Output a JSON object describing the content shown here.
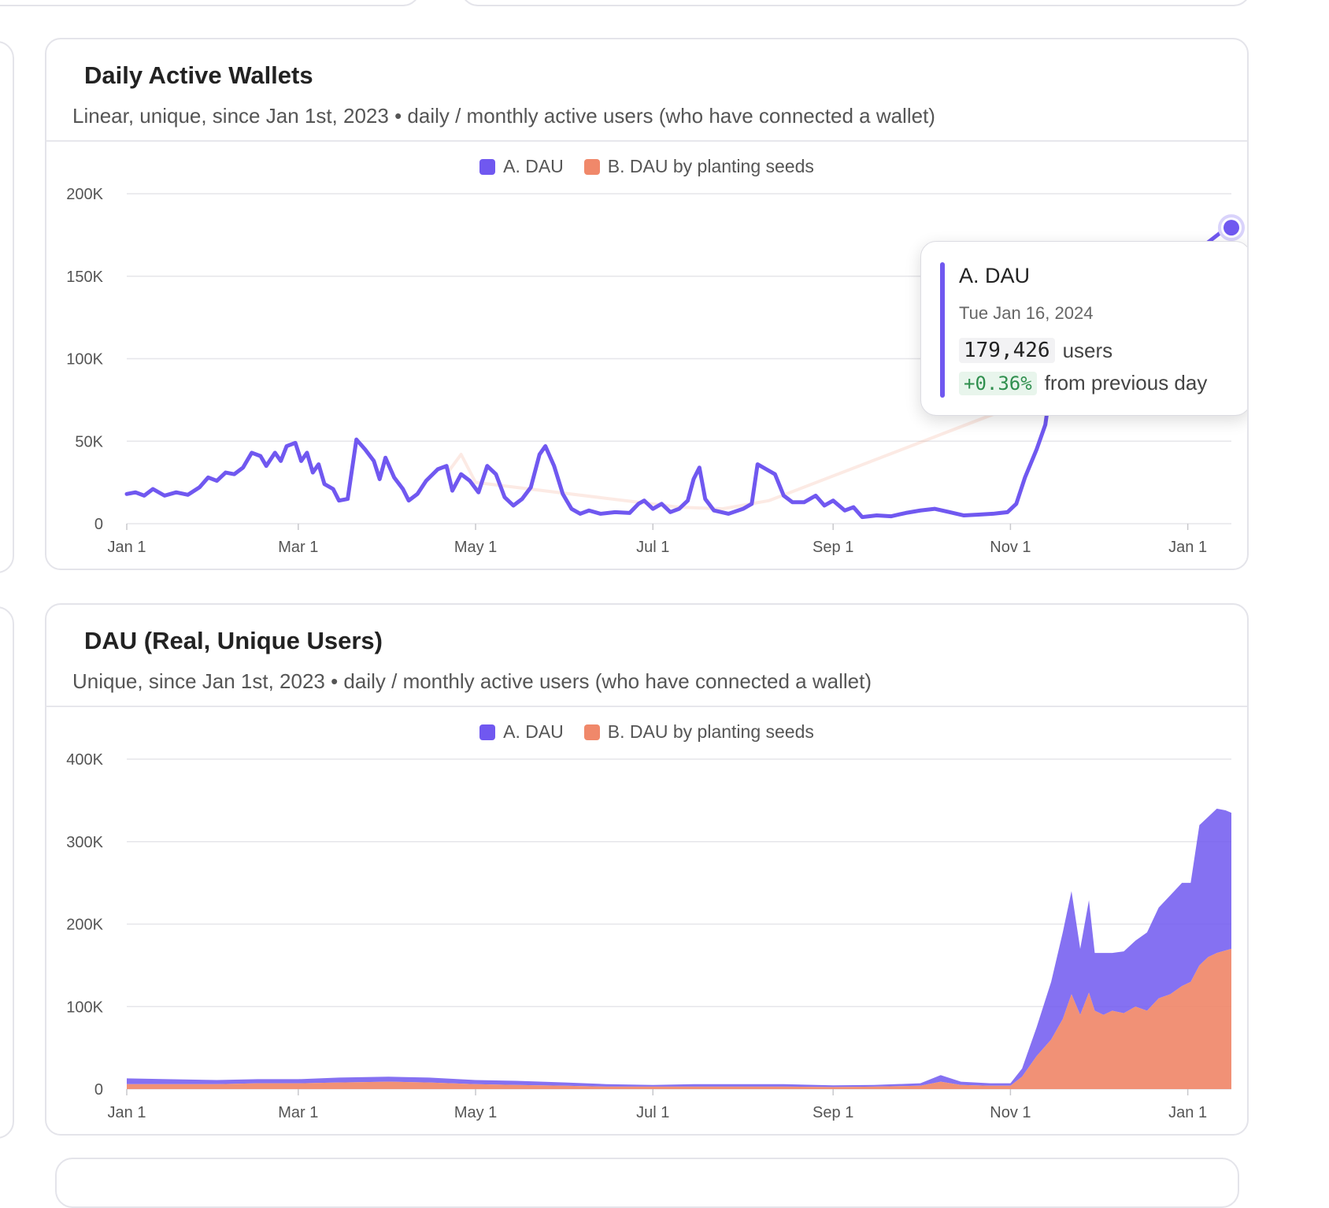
{
  "colors": {
    "dau": "#7058f0",
    "seeds": "#f0886a",
    "grid": "#e6e6ea",
    "text": "#555555"
  },
  "legend_icons": {
    "dau": "square-swatch",
    "seeds": "square-swatch"
  },
  "chart_data": [
    {
      "type": "line",
      "title": "Daily Active Wallets",
      "subtitle": "Linear, unique, since Jan 1st, 2023 • daily / monthly active users (who have connected a wallet)",
      "xlabel": "",
      "ylabel": "",
      "x_ticks": [
        "Jan 1",
        "Mar 1",
        "May 1",
        "Jul 1",
        "Sep 1",
        "Nov 1",
        "Jan 1"
      ],
      "y_ticks": [
        "0",
        "50K",
        "100K",
        "150K",
        "200K"
      ],
      "ylim": [
        0,
        200000
      ],
      "xlim": [
        "2023-01-01",
        "2024-01-16"
      ],
      "grid": true,
      "legend_position": "top-center",
      "series": [
        {
          "name": "A. DAU",
          "emphasis": "highlighted",
          "points": [
            [
              "2023-01-01",
              18000
            ],
            [
              "2023-01-04",
              19000
            ],
            [
              "2023-01-07",
              17000
            ],
            [
              "2023-01-10",
              21000
            ],
            [
              "2023-01-14",
              17000
            ],
            [
              "2023-01-18",
              19000
            ],
            [
              "2023-01-22",
              17500
            ],
            [
              "2023-01-26",
              22000
            ],
            [
              "2023-01-29",
              28000
            ],
            [
              "2023-02-01",
              26000
            ],
            [
              "2023-02-04",
              31000
            ],
            [
              "2023-02-07",
              30000
            ],
            [
              "2023-02-10",
              34000
            ],
            [
              "2023-02-13",
              43000
            ],
            [
              "2023-02-16",
              41000
            ],
            [
              "2023-02-18",
              35000
            ],
            [
              "2023-02-21",
              43000
            ],
            [
              "2023-02-23",
              38000
            ],
            [
              "2023-02-25",
              47000
            ],
            [
              "2023-02-28",
              49000
            ],
            [
              "2023-03-02",
              38000
            ],
            [
              "2023-03-04",
              43000
            ],
            [
              "2023-03-06",
              31000
            ],
            [
              "2023-03-08",
              36000
            ],
            [
              "2023-03-10",
              24000
            ],
            [
              "2023-03-13",
              21000
            ],
            [
              "2023-03-15",
              14000
            ],
            [
              "2023-03-18",
              15000
            ],
            [
              "2023-03-21",
              51000
            ],
            [
              "2023-03-24",
              45000
            ],
            [
              "2023-03-27",
              38000
            ],
            [
              "2023-03-29",
              27000
            ],
            [
              "2023-03-31",
              40000
            ],
            [
              "2023-04-03",
              28000
            ],
            [
              "2023-04-06",
              21000
            ],
            [
              "2023-04-08",
              14000
            ],
            [
              "2023-04-11",
              18000
            ],
            [
              "2023-04-14",
              26000
            ],
            [
              "2023-04-18",
              33000
            ],
            [
              "2023-04-21",
              35000
            ],
            [
              "2023-04-23",
              20000
            ],
            [
              "2023-04-26",
              30000
            ],
            [
              "2023-04-29",
              26000
            ],
            [
              "2023-05-02",
              19000
            ],
            [
              "2023-05-05",
              35000
            ],
            [
              "2023-05-08",
              30000
            ],
            [
              "2023-05-11",
              16000
            ],
            [
              "2023-05-14",
              11000
            ],
            [
              "2023-05-17",
              15000
            ],
            [
              "2023-05-20",
              22000
            ],
            [
              "2023-05-23",
              42000
            ],
            [
              "2023-05-25",
              47000
            ],
            [
              "2023-05-28",
              35000
            ],
            [
              "2023-05-31",
              18000
            ],
            [
              "2023-06-03",
              9000
            ],
            [
              "2023-06-06",
              6000
            ],
            [
              "2023-06-09",
              8000
            ],
            [
              "2023-06-13",
              6000
            ],
            [
              "2023-06-18",
              7000
            ],
            [
              "2023-06-23",
              6500
            ],
            [
              "2023-06-26",
              12000
            ],
            [
              "2023-06-28",
              14000
            ],
            [
              "2023-07-01",
              9000
            ],
            [
              "2023-07-04",
              12000
            ],
            [
              "2023-07-07",
              7000
            ],
            [
              "2023-07-10",
              9000
            ],
            [
              "2023-07-13",
              14000
            ],
            [
              "2023-07-15",
              27000
            ],
            [
              "2023-07-17",
              34000
            ],
            [
              "2023-07-19",
              15000
            ],
            [
              "2023-07-22",
              8000
            ],
            [
              "2023-07-27",
              6000
            ],
            [
              "2023-08-01",
              9000
            ],
            [
              "2023-08-04",
              12000
            ],
            [
              "2023-08-06",
              36000
            ],
            [
              "2023-08-09",
              33000
            ],
            [
              "2023-08-12",
              30000
            ],
            [
              "2023-08-15",
              17000
            ],
            [
              "2023-08-18",
              13000
            ],
            [
              "2023-08-22",
              13000
            ],
            [
              "2023-08-26",
              17000
            ],
            [
              "2023-08-29",
              11000
            ],
            [
              "2023-09-01",
              14000
            ],
            [
              "2023-09-05",
              8000
            ],
            [
              "2023-09-08",
              10000
            ],
            [
              "2023-09-11",
              4000
            ],
            [
              "2023-09-16",
              5000
            ],
            [
              "2023-09-21",
              4500
            ],
            [
              "2023-09-26",
              6500
            ],
            [
              "2023-10-01",
              8000
            ],
            [
              "2023-10-06",
              9000
            ],
            [
              "2023-10-11",
              7000
            ],
            [
              "2023-10-16",
              5000
            ],
            [
              "2023-10-21",
              5500
            ],
            [
              "2023-10-26",
              6000
            ],
            [
              "2023-10-31",
              7000
            ],
            [
              "2023-11-03",
              12000
            ],
            [
              "2023-11-06",
              28000
            ],
            [
              "2023-11-10",
              45000
            ],
            [
              "2023-11-13",
              60000
            ],
            [
              "2023-11-16",
              98000
            ],
            [
              "2024-01-14",
              178800
            ],
            [
              "2024-01-16",
              179426
            ]
          ]
        },
        {
          "name": "B. DAU by planting seeds",
          "emphasis": "faded",
          "points": [
            [
              "2023-04-21",
              30000
            ],
            [
              "2023-04-26",
              42000
            ],
            [
              "2023-05-01",
              25000
            ],
            [
              "2023-07-10",
              10000
            ],
            [
              "2023-07-25",
              9000
            ],
            [
              "2023-08-10",
              14000
            ],
            [
              "2023-11-30",
              90000
            ],
            [
              "2023-12-02",
              86000
            ],
            [
              "2023-12-06",
              94000
            ],
            [
              "2024-01-16",
              160000
            ]
          ]
        }
      ],
      "tooltip": {
        "series": "A. DAU",
        "date": "Tue Jan 16, 2024",
        "value": "179,426",
        "unit": "users",
        "change": "+0.36%",
        "change_label": "from previous day"
      }
    },
    {
      "type": "area",
      "stacked": true,
      "title": "DAU (Real, Unique Users)",
      "subtitle": "Unique, since Jan 1st, 2023 • daily / monthly active users (who have connected a wallet)",
      "xlabel": "",
      "ylabel": "",
      "x_ticks": [
        "Jan 1",
        "Mar 1",
        "May 1",
        "Jul 1",
        "Sep 1",
        "Nov 1",
        "Jan 1"
      ],
      "y_ticks": [
        "0",
        "100K",
        "200K",
        "300K",
        "400K"
      ],
      "ylim": [
        0,
        400000
      ],
      "xlim": [
        "2023-01-01",
        "2024-01-16"
      ],
      "grid": true,
      "legend_position": "top-center",
      "x": [
        "2023-01-01",
        "2023-01-15",
        "2023-02-01",
        "2023-02-15",
        "2023-03-01",
        "2023-03-15",
        "2023-04-01",
        "2023-04-15",
        "2023-05-01",
        "2023-05-15",
        "2023-06-01",
        "2023-06-15",
        "2023-07-01",
        "2023-07-15",
        "2023-08-01",
        "2023-08-15",
        "2023-09-01",
        "2023-09-15",
        "2023-10-01",
        "2023-10-08",
        "2023-10-15",
        "2023-10-25",
        "2023-11-01",
        "2023-11-05",
        "2023-11-10",
        "2023-11-15",
        "2023-11-19",
        "2023-11-22",
        "2023-11-25",
        "2023-11-28",
        "2023-11-30",
        "2023-12-03",
        "2023-12-06",
        "2023-12-10",
        "2023-12-14",
        "2023-12-18",
        "2023-12-22",
        "2023-12-26",
        "2023-12-30",
        "2024-01-02",
        "2024-01-05",
        "2024-01-08",
        "2024-01-11",
        "2024-01-14",
        "2024-01-16"
      ],
      "series": [
        {
          "name": "B. DAU by planting seeds",
          "values": [
            6000,
            6000,
            6000,
            7000,
            7000,
            8000,
            9000,
            8000,
            6000,
            5000,
            4000,
            3000,
            3000,
            3000,
            3000,
            3000,
            2500,
            3000,
            4000,
            9000,
            5000,
            4000,
            4000,
            15000,
            40000,
            60000,
            85000,
            115000,
            90000,
            117000,
            95000,
            90000,
            95000,
            92000,
            100000,
            95000,
            110000,
            115000,
            125000,
            130000,
            150000,
            160000,
            165000,
            168000,
            170000
          ]
        },
        {
          "name": "A. DAU",
          "values": [
            7000,
            6000,
            5000,
            5000,
            5000,
            6000,
            6000,
            6000,
            5000,
            5000,
            4000,
            3000,
            2000,
            3000,
            3000,
            3000,
            2000,
            2000,
            3000,
            8000,
            4000,
            3000,
            3000,
            10000,
            35000,
            70000,
            105000,
            125000,
            80000,
            112000,
            70000,
            75000,
            70000,
            75000,
            80000,
            95000,
            110000,
            120000,
            125000,
            120000,
            170000,
            170000,
            175000,
            170000,
            165000
          ]
        }
      ]
    }
  ]
}
